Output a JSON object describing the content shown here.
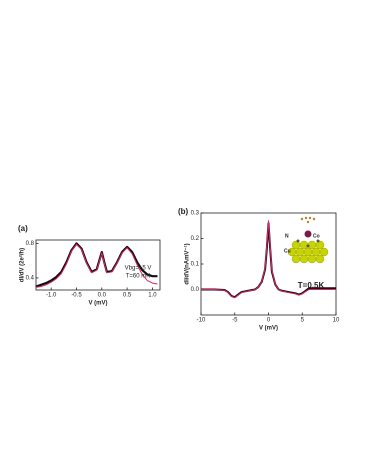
{
  "chart_data": [
    {
      "type": "line",
      "panel_label": "(a)",
      "x_label": "V (mV)",
      "y_label": "dI/dV (2e²/h)",
      "annotations": [
        "Vbg=+5 V",
        "T=60 mK"
      ],
      "x": [
        -1.3,
        -1.2,
        -1.1,
        -1.0,
        -0.9,
        -0.8,
        -0.7,
        -0.6,
        -0.5,
        -0.4,
        -0.3,
        -0.2,
        -0.1,
        -0.05,
        0,
        0.05,
        0.1,
        0.2,
        0.3,
        0.4,
        0.5,
        0.6,
        0.7,
        0.8,
        0.9,
        1.0,
        1.1
      ],
      "series": [
        {
          "color": "#111111",
          "width": 2.2,
          "values": [
            0.3,
            0.32,
            0.34,
            0.37,
            0.41,
            0.47,
            0.58,
            0.72,
            0.8,
            0.74,
            0.58,
            0.47,
            0.5,
            0.6,
            0.7,
            0.58,
            0.47,
            0.48,
            0.58,
            0.7,
            0.76,
            0.7,
            0.58,
            0.49,
            0.44,
            0.42,
            0.42
          ]
        },
        {
          "color": "#e0206a",
          "width": 1,
          "values": [
            0.29,
            0.3,
            0.32,
            0.35,
            0.39,
            0.45,
            0.56,
            0.71,
            0.79,
            0.73,
            0.57,
            0.46,
            0.49,
            0.59,
            0.69,
            0.57,
            0.46,
            0.47,
            0.57,
            0.69,
            0.75,
            0.68,
            0.55,
            0.44,
            0.37,
            0.34,
            0.33
          ]
        }
      ],
      "xlim": [
        -1.3,
        1.15
      ],
      "ylim": [
        0.26,
        0.84
      ],
      "xticks": [
        {
          "value": -1,
          "label": "-1.0"
        },
        -0.5,
        {
          "value": 0,
          "label": "0.0"
        },
        0.5,
        {
          "value": 1,
          "label": "1.0"
        }
      ],
      "yticks": [
        0.4,
        0.8
      ]
    },
    {
      "type": "line",
      "panel_label": "(b)",
      "x_label": "V (mV)",
      "y_label": "dI/dV(nAmV⁻¹)",
      "annotations": [
        "T=0.5K"
      ],
      "inset_labels": [
        "N",
        "Co",
        "Cu"
      ],
      "x": [
        -10,
        -8,
        -6.5,
        -6,
        -5.5,
        -5,
        -4.5,
        -4,
        -3,
        -2,
        -1.5,
        -1,
        -0.5,
        -0.25,
        0,
        0.25,
        0.5,
        1,
        1.5,
        2,
        3,
        4,
        4.5,
        5,
        5.5,
        6,
        7,
        8,
        10
      ],
      "series": [
        {
          "color": "#111111",
          "width": 2,
          "values": [
            0,
            0,
            -0.002,
            -0.01,
            -0.025,
            -0.03,
            -0.02,
            -0.01,
            -0.005,
            0.0,
            0.01,
            0.03,
            0.08,
            0.16,
            0.26,
            0.16,
            0.07,
            0.02,
            0.0,
            -0.005,
            -0.01,
            -0.015,
            -0.02,
            -0.015,
            -0.005,
            0.005,
            0.005,
            0.005,
            0.005
          ]
        },
        {
          "color": "#e0206a",
          "width": 1,
          "values": [
            0,
            0,
            -0.003,
            -0.012,
            -0.027,
            -0.032,
            -0.022,
            -0.012,
            -0.006,
            -0.001,
            0.01,
            0.03,
            0.085,
            0.17,
            0.27,
            0.17,
            0.075,
            0.02,
            0.0,
            -0.006,
            -0.012,
            -0.017,
            -0.022,
            -0.017,
            -0.008,
            0.0,
            0.0,
            0.0,
            0.0
          ]
        }
      ],
      "xlim": [
        -10,
        10
      ],
      "ylim": [
        -0.1,
        0.3
      ],
      "xticks": [
        -10,
        -5,
        0,
        5,
        10
      ],
      "yticks": [
        {
          "value": 0,
          "label": "0.0"
        },
        0.1,
        0.2,
        0.3
      ]
    }
  ]
}
